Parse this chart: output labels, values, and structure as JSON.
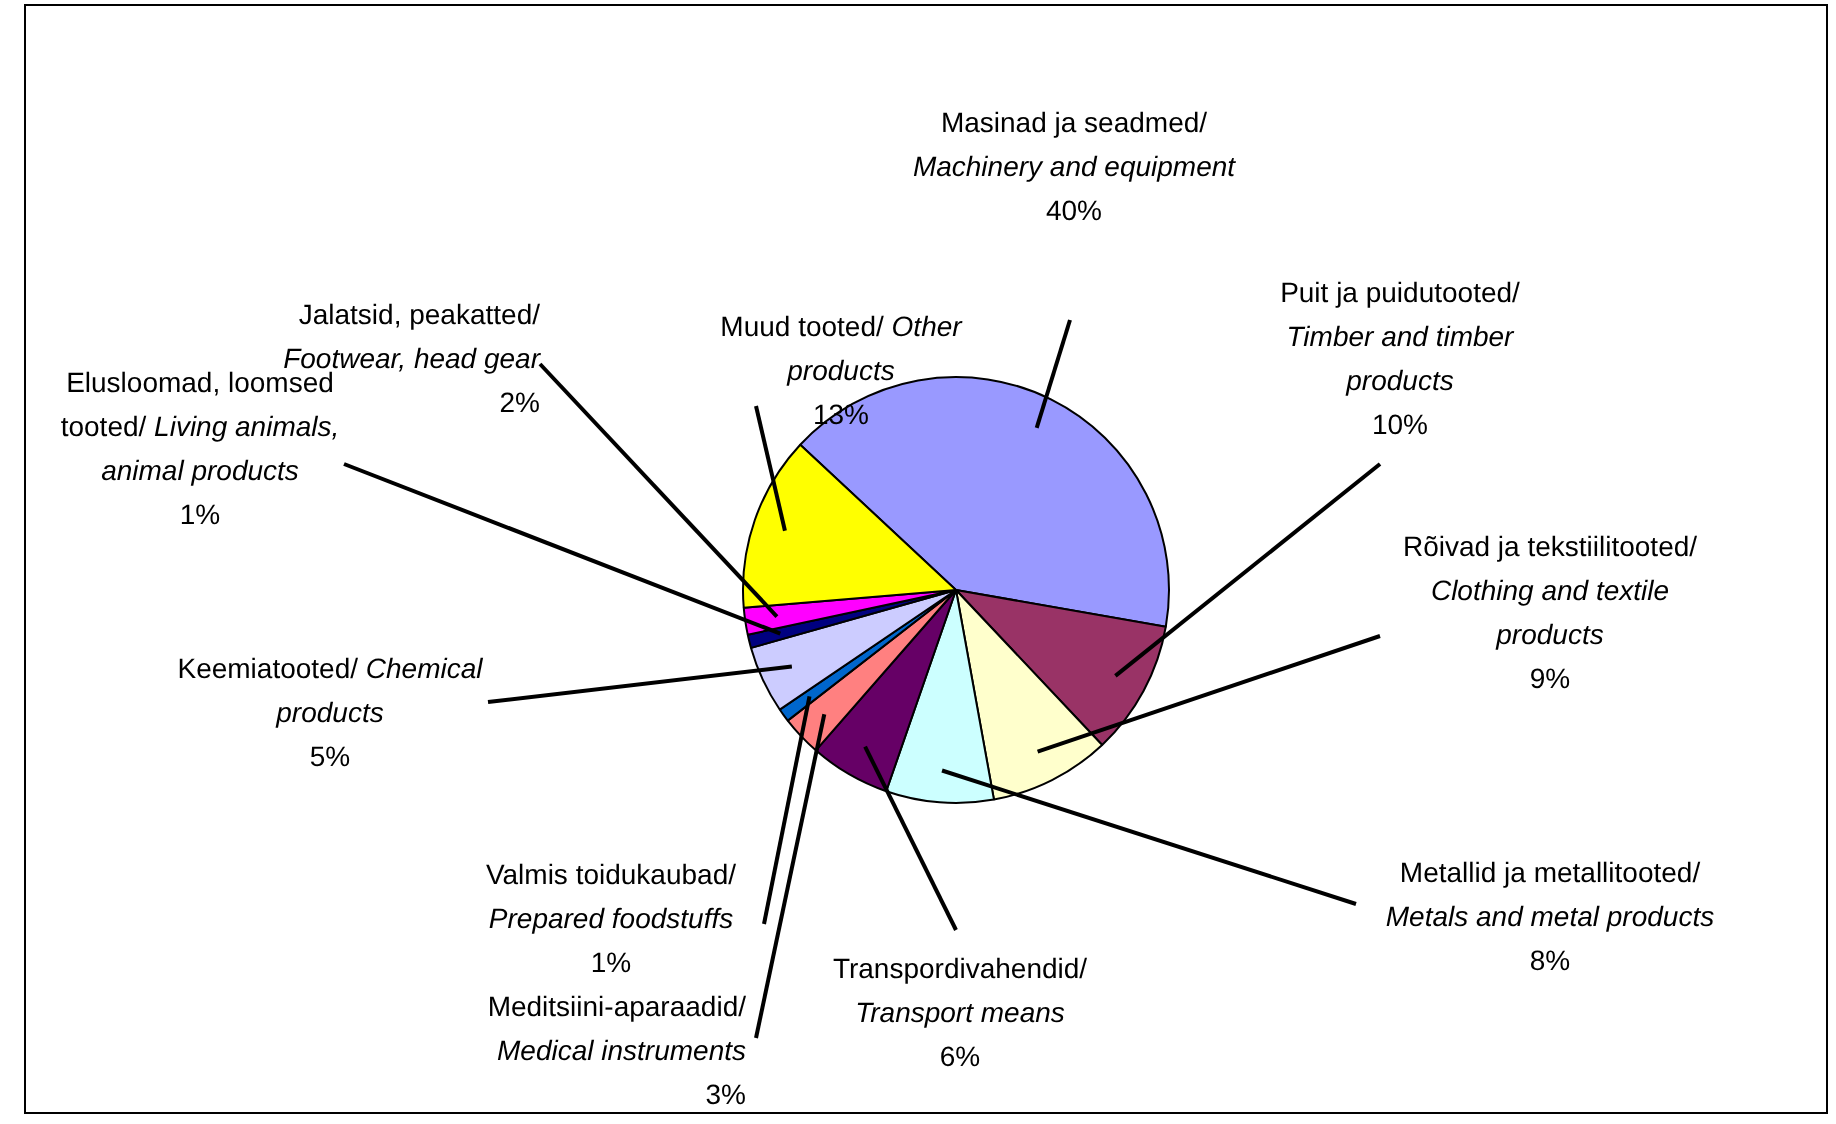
{
  "chart_data": {
    "type": "pie",
    "categories": [
      "Masinad ja seadmed/ Machinery and equipment",
      "Puit ja puidutooted/ Timber and timber products",
      "Rõivad ja tekstiilitooted/ Clothing and textile products",
      "Metallid ja metallitooted/ Metals and metal products",
      "Transpordivahendid/ Transport means",
      "Meditsiini-aparaadid/ Medical instruments",
      "Valmis toidukaubad/ Prepared foodstuffs",
      "Keemiatooted/ Chemical products",
      "Elusloomad, loomsed tooted/ Living animals, animal products",
      "Jalatsid, peakatted/ Footwear, head gear",
      "Muud tooted/ Other products"
    ],
    "values": [
      40,
      10,
      9,
      8,
      6,
      3,
      1,
      5,
      1,
      2,
      13
    ],
    "value_labels": [
      "40%",
      "10%",
      "9%",
      "8%",
      "6%",
      "3%",
      "1%",
      "5%",
      "1%",
      "2%",
      "13%"
    ],
    "colors": [
      "#9999ff",
      "#993366",
      "#ffffcc",
      "#ccffff",
      "#660066",
      "#ff8080",
      "#0066cc",
      "#ccccff",
      "#000080",
      "#ff00ff",
      "#ffff00"
    ],
    "legend": false
  }
}
